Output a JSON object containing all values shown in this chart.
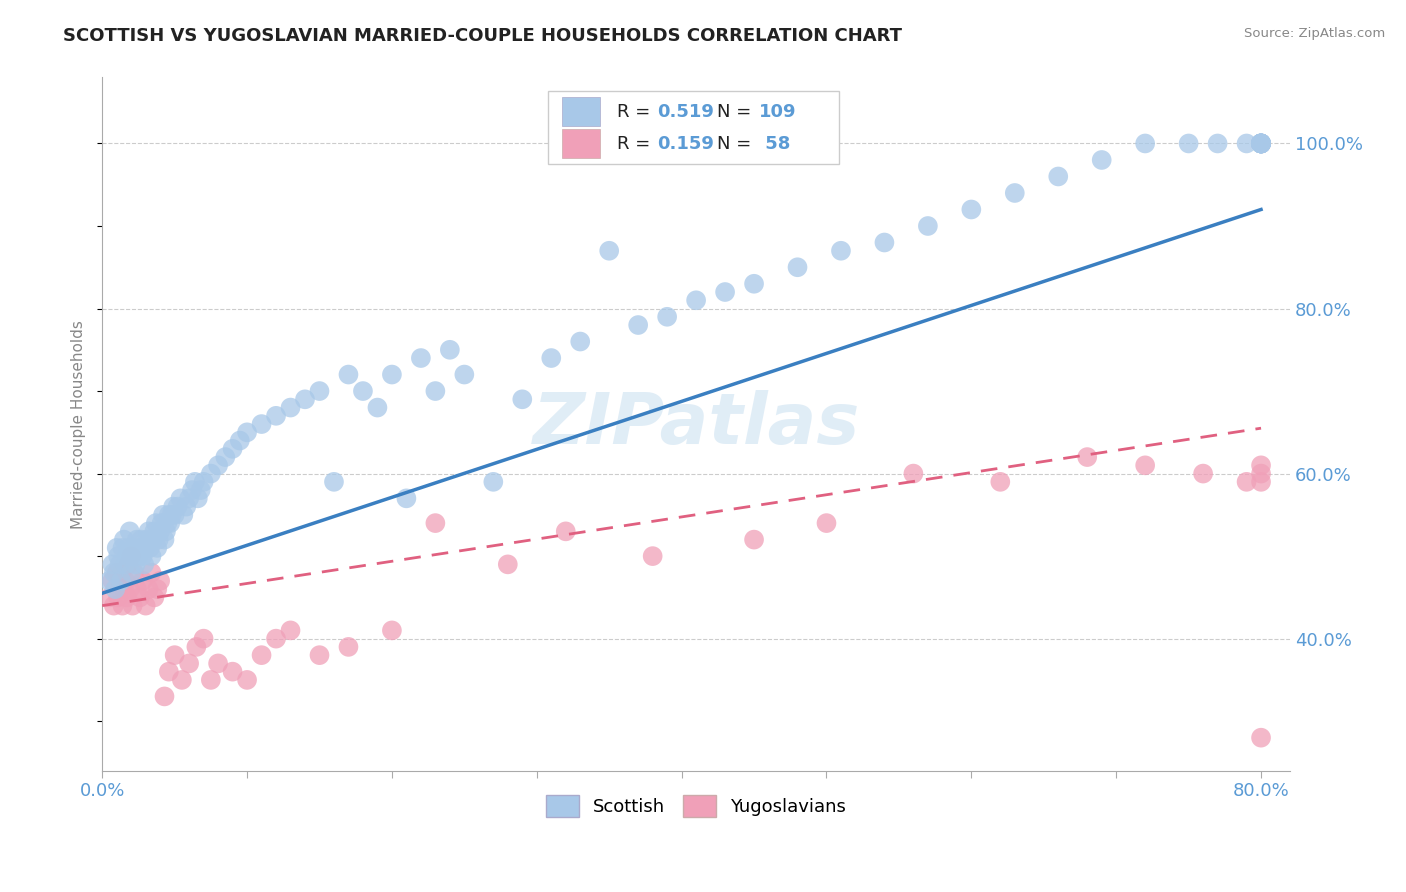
{
  "title": "SCOTTISH VS YUGOSLAVIAN MARRIED-COUPLE HOUSEHOLDS CORRELATION CHART",
  "source": "Source: ZipAtlas.com",
  "ylabel": "Married-couple Households",
  "right_yticks": [
    "40.0%",
    "60.0%",
    "80.0%",
    "100.0%"
  ],
  "right_ytick_vals": [
    0.4,
    0.6,
    0.8,
    1.0
  ],
  "xlim": [
    0.0,
    0.82
  ],
  "ylim": [
    0.24,
    1.08
  ],
  "scottish_R": 0.519,
  "scottish_N": 109,
  "yugoslavian_R": 0.159,
  "yugoslavian_N": 58,
  "scottish_color": "#a8c8e8",
  "yugoslavian_color": "#f0a0b8",
  "scottish_line_color": "#3a7fc1",
  "yugoslavian_line_color": "#e06080",
  "watermark": "ZIPatlas",
  "scottish_x": [
    0.005,
    0.007,
    0.008,
    0.009,
    0.01,
    0.011,
    0.012,
    0.013,
    0.014,
    0.015,
    0.016,
    0.017,
    0.018,
    0.019,
    0.02,
    0.021,
    0.022,
    0.023,
    0.024,
    0.025,
    0.026,
    0.027,
    0.028,
    0.029,
    0.03,
    0.031,
    0.032,
    0.033,
    0.034,
    0.035,
    0.036,
    0.037,
    0.038,
    0.039,
    0.04,
    0.041,
    0.042,
    0.043,
    0.044,
    0.045,
    0.046,
    0.047,
    0.048,
    0.049,
    0.05,
    0.052,
    0.054,
    0.056,
    0.058,
    0.06,
    0.062,
    0.064,
    0.066,
    0.068,
    0.07,
    0.075,
    0.08,
    0.085,
    0.09,
    0.095,
    0.1,
    0.11,
    0.12,
    0.13,
    0.14,
    0.15,
    0.16,
    0.17,
    0.18,
    0.19,
    0.2,
    0.21,
    0.22,
    0.23,
    0.24,
    0.25,
    0.27,
    0.29,
    0.31,
    0.33,
    0.35,
    0.37,
    0.39,
    0.41,
    0.43,
    0.45,
    0.48,
    0.51,
    0.54,
    0.57,
    0.6,
    0.63,
    0.66,
    0.69,
    0.72,
    0.75,
    0.77,
    0.79,
    0.8,
    0.8,
    0.8,
    0.8,
    0.8,
    0.8,
    0.8,
    0.8,
    0.8,
    0.8,
    0.8
  ],
  "scottish_y": [
    0.47,
    0.49,
    0.48,
    0.46,
    0.51,
    0.5,
    0.49,
    0.47,
    0.51,
    0.52,
    0.49,
    0.5,
    0.51,
    0.53,
    0.48,
    0.5,
    0.51,
    0.49,
    0.52,
    0.5,
    0.51,
    0.52,
    0.5,
    0.49,
    0.51,
    0.52,
    0.53,
    0.51,
    0.5,
    0.52,
    0.53,
    0.54,
    0.51,
    0.52,
    0.53,
    0.54,
    0.55,
    0.52,
    0.53,
    0.54,
    0.55,
    0.54,
    0.55,
    0.56,
    0.55,
    0.56,
    0.57,
    0.55,
    0.56,
    0.57,
    0.58,
    0.59,
    0.57,
    0.58,
    0.59,
    0.6,
    0.61,
    0.62,
    0.63,
    0.64,
    0.65,
    0.66,
    0.67,
    0.68,
    0.69,
    0.7,
    0.59,
    0.72,
    0.7,
    0.68,
    0.72,
    0.57,
    0.74,
    0.7,
    0.75,
    0.72,
    0.59,
    0.69,
    0.74,
    0.76,
    0.87,
    0.78,
    0.79,
    0.81,
    0.82,
    0.83,
    0.85,
    0.87,
    0.88,
    0.9,
    0.92,
    0.94,
    0.96,
    0.98,
    1.0,
    1.0,
    1.0,
    1.0,
    1.0,
    1.0,
    1.0,
    1.0,
    1.0,
    1.0,
    1.0,
    1.0,
    1.0,
    1.0,
    1.0
  ],
  "yugoslav_x": [
    0.005,
    0.007,
    0.008,
    0.01,
    0.011,
    0.012,
    0.013,
    0.014,
    0.015,
    0.016,
    0.017,
    0.018,
    0.019,
    0.02,
    0.021,
    0.022,
    0.024,
    0.026,
    0.028,
    0.03,
    0.032,
    0.034,
    0.036,
    0.038,
    0.04,
    0.043,
    0.046,
    0.05,
    0.055,
    0.06,
    0.065,
    0.07,
    0.075,
    0.08,
    0.09,
    0.1,
    0.11,
    0.12,
    0.13,
    0.15,
    0.17,
    0.2,
    0.23,
    0.28,
    0.32,
    0.38,
    0.45,
    0.5,
    0.56,
    0.62,
    0.68,
    0.72,
    0.76,
    0.79,
    0.8,
    0.8,
    0.8,
    0.8
  ],
  "yugoslav_y": [
    0.45,
    0.47,
    0.44,
    0.48,
    0.45,
    0.46,
    0.48,
    0.44,
    0.46,
    0.47,
    0.45,
    0.49,
    0.46,
    0.5,
    0.44,
    0.48,
    0.46,
    0.45,
    0.47,
    0.44,
    0.46,
    0.48,
    0.45,
    0.46,
    0.47,
    0.33,
    0.36,
    0.38,
    0.35,
    0.37,
    0.39,
    0.4,
    0.35,
    0.37,
    0.36,
    0.35,
    0.38,
    0.4,
    0.41,
    0.38,
    0.39,
    0.41,
    0.54,
    0.49,
    0.53,
    0.5,
    0.52,
    0.54,
    0.6,
    0.59,
    0.62,
    0.61,
    0.6,
    0.59,
    0.61,
    0.6,
    0.59,
    0.28
  ]
}
